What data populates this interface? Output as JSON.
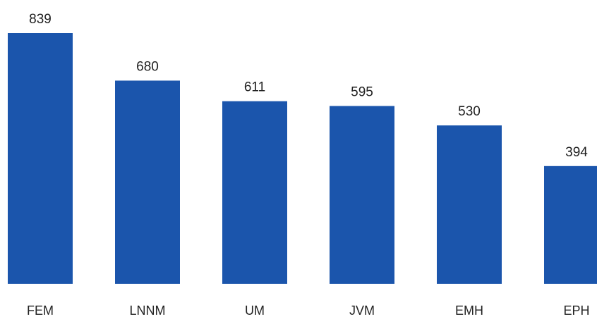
{
  "chart_data": {
    "type": "bar",
    "title": "",
    "xlabel": "",
    "ylabel": "",
    "categories": [
      "FEM",
      "LNNM",
      "UM",
      "JVM",
      "EMH",
      "EPH"
    ],
    "values": [
      839,
      680,
      611,
      595,
      530,
      394
    ],
    "ylim": [
      0,
      839
    ],
    "grid": false,
    "legend": "none",
    "colors": {
      "bar": "#1b55ac",
      "text": "#222222",
      "background": "#ffffff"
    }
  }
}
